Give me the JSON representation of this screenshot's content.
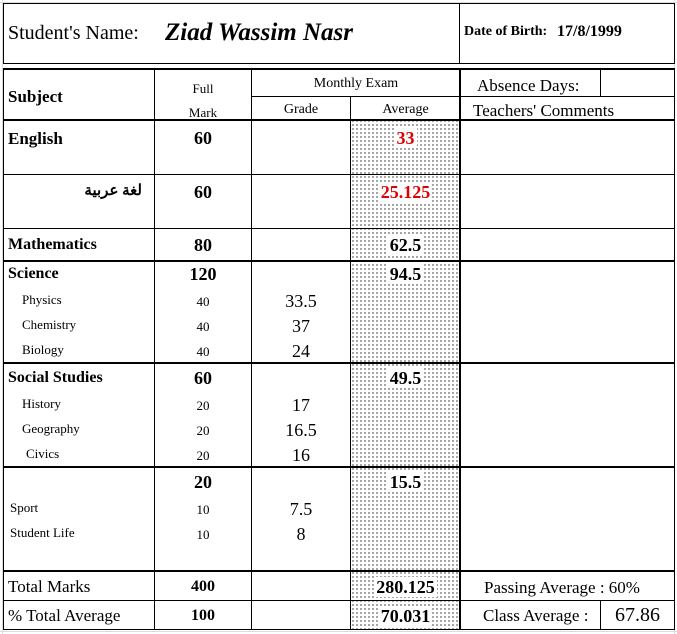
{
  "header": {
    "name_label": "Student's Name:",
    "name_value": "Ziad Wassim Nasr",
    "dob_label": "Date of Birth:",
    "dob_value": "17/8/1999"
  },
  "table_headers": {
    "subject": "Subject",
    "full": "Full",
    "mark": "Mark",
    "monthly_exam": "Monthly Exam",
    "grade": "Grade",
    "average": "Average",
    "absence_days": "Absence Days:",
    "teachers_comments": "Teachers' Comments"
  },
  "rows": {
    "english": {
      "subject": "English",
      "full_mark": "60",
      "average": "33"
    },
    "arabic": {
      "subject": "لغة عربية",
      "full_mark": "60",
      "average": "25.125"
    },
    "math": {
      "subject": "Mathematics",
      "full_mark": "80",
      "average": "62.5"
    },
    "science": {
      "subject": "Science",
      "full_mark": "120",
      "average": "94.5"
    },
    "physics": {
      "subject": "Physics",
      "full_mark": "40",
      "grade": "33.5"
    },
    "chemistry": {
      "subject": "Chemistry",
      "full_mark": "40",
      "grade": "37"
    },
    "biology": {
      "subject": "Biology",
      "full_mark": "40",
      "grade": "24"
    },
    "social": {
      "subject": "Social Studies",
      "full_mark": "60",
      "average": "49.5"
    },
    "history": {
      "subject": "History",
      "full_mark": "20",
      "grade": "17"
    },
    "geography": {
      "subject": "Geography",
      "full_mark": "20",
      "grade": "16.5"
    },
    "civics": {
      "subject": "Civics",
      "full_mark": "20",
      "grade": "16"
    },
    "group": {
      "full_mark": "20",
      "average": "15.5"
    },
    "sport": {
      "subject": "Sport",
      "full_mark": "10",
      "grade": "7.5"
    },
    "student_life": {
      "subject": "Student Life",
      "full_mark": "10",
      "grade": "8"
    }
  },
  "totals": {
    "total_label": "Total Marks",
    "total_full": "400",
    "total_avg": "280.125",
    "pct_label": "% Total Average",
    "pct_full": "100",
    "pct_avg": "70.031",
    "passing": "Passing Average : 60%",
    "class_avg_label": "Class Average :",
    "class_avg_value": "67.86"
  },
  "colors": {
    "failing": "#e00000",
    "gridline": "#dcdcdc"
  }
}
